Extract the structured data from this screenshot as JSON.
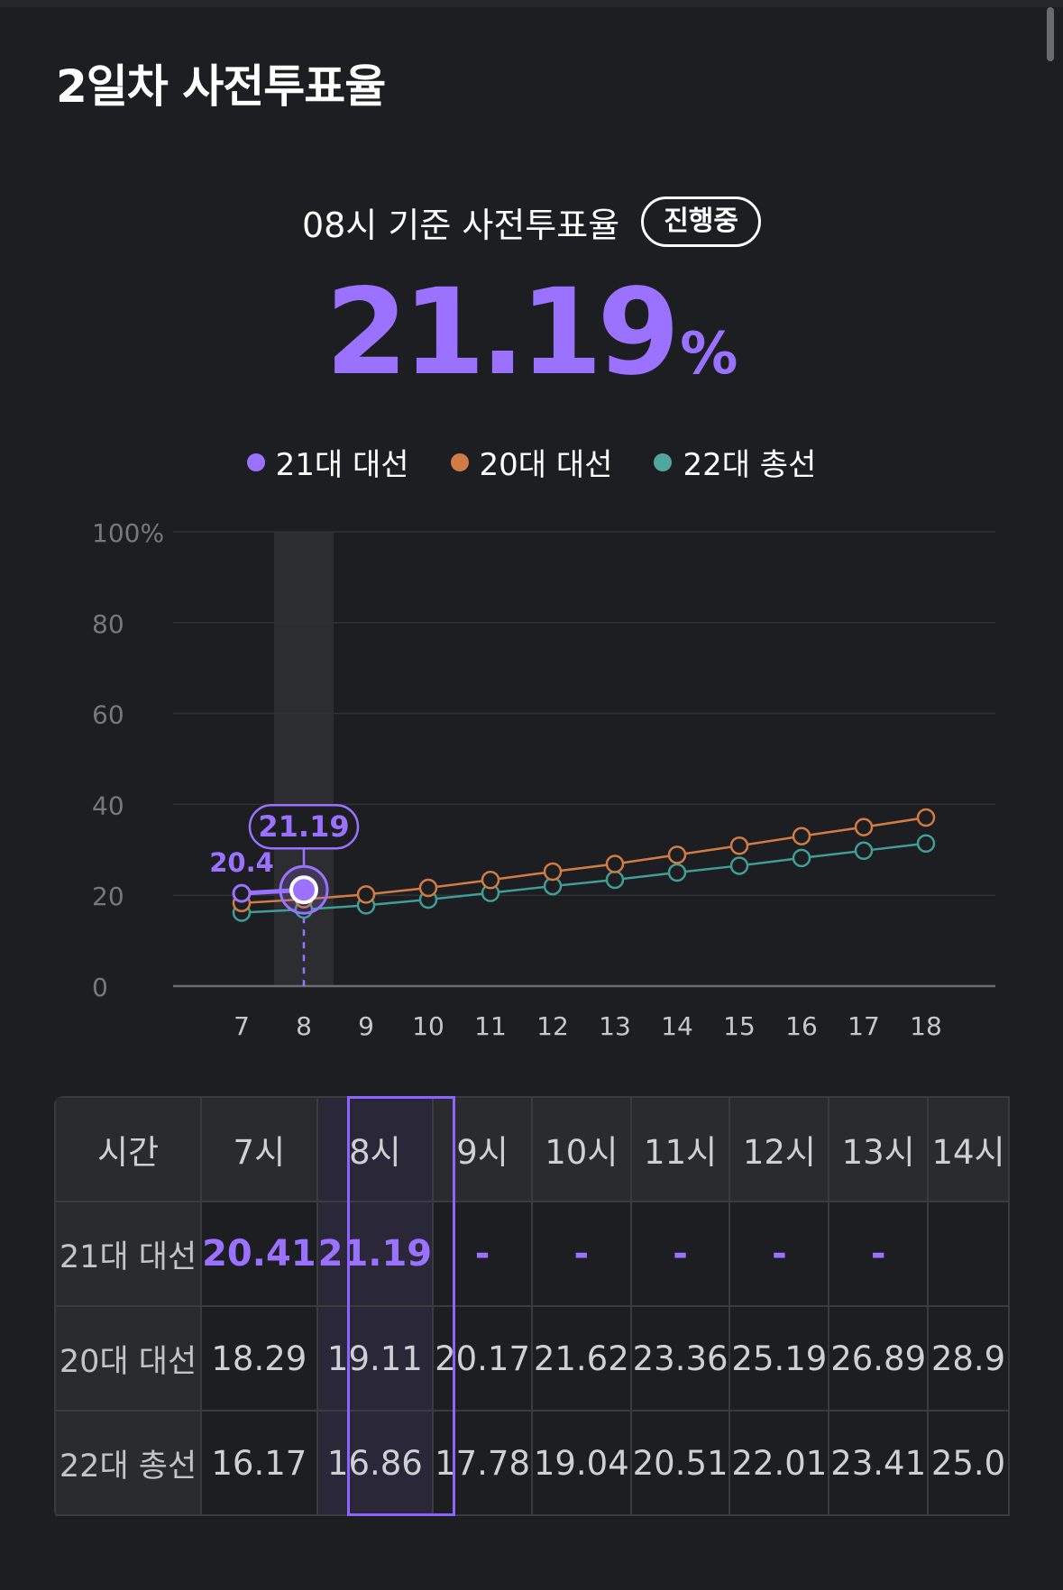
{
  "section_title": "2일차 사전투표율",
  "subtitle": "08시 기준 사전투표율",
  "status_badge": "진행중",
  "current_rate": "21.19",
  "current_rate_unit": "%",
  "colors": {
    "series_21": "#9b72ff",
    "series_20": "#d27c45",
    "series_22": "#3f9e96",
    "background": "#1d1e21"
  },
  "chart_data": {
    "type": "line",
    "x": [
      7,
      8,
      9,
      10,
      11,
      12,
      13,
      14,
      15,
      16,
      17,
      18
    ],
    "xlabel": "",
    "ylabel": "",
    "ylim": [
      0,
      100
    ],
    "yticks": [
      0,
      20,
      40,
      60,
      80,
      100
    ],
    "ytick_labels": [
      "0",
      "20",
      "40",
      "60",
      "80",
      "100%"
    ],
    "highlight_x": 8,
    "point_labels": [
      {
        "x": 7,
        "text": "20.4"
      },
      {
        "x": 8,
        "text": "21.19"
      }
    ],
    "series": [
      {
        "name": "21대 대선",
        "values": [
          20.41,
          21.19,
          null,
          null,
          null,
          null,
          null,
          null,
          null,
          null,
          null,
          null
        ]
      },
      {
        "name": "20대 대선",
        "values": [
          18.29,
          19.11,
          20.17,
          21.62,
          23.36,
          25.19,
          26.89,
          28.9,
          30.9,
          33.0,
          35.0,
          37.1
        ]
      },
      {
        "name": "22대 총선",
        "values": [
          16.17,
          16.86,
          17.78,
          19.04,
          20.51,
          22.01,
          23.41,
          25.0,
          26.5,
          28.2,
          29.8,
          31.4
        ]
      }
    ],
    "legend_position": "top"
  },
  "table": {
    "header_label": "시간",
    "hours": [
      "7시",
      "8시",
      "9시",
      "10시",
      "11시",
      "12시",
      "13시"
    ],
    "partial_hour": "14시",
    "rows": [
      {
        "label": "21대 대선",
        "values": [
          "20.41",
          "21.19",
          "-",
          "-",
          "-",
          "-",
          "-"
        ],
        "partial": ""
      },
      {
        "label": "20대 대선",
        "values": [
          "18.29",
          "19.11",
          "20.17",
          "21.62",
          "23.36",
          "25.19",
          "26.89"
        ],
        "partial": "28.9"
      },
      {
        "label": "22대 총선",
        "values": [
          "16.17",
          "16.86",
          "17.78",
          "19.04",
          "20.51",
          "22.01",
          "23.41"
        ],
        "partial": "25.0"
      }
    ]
  }
}
